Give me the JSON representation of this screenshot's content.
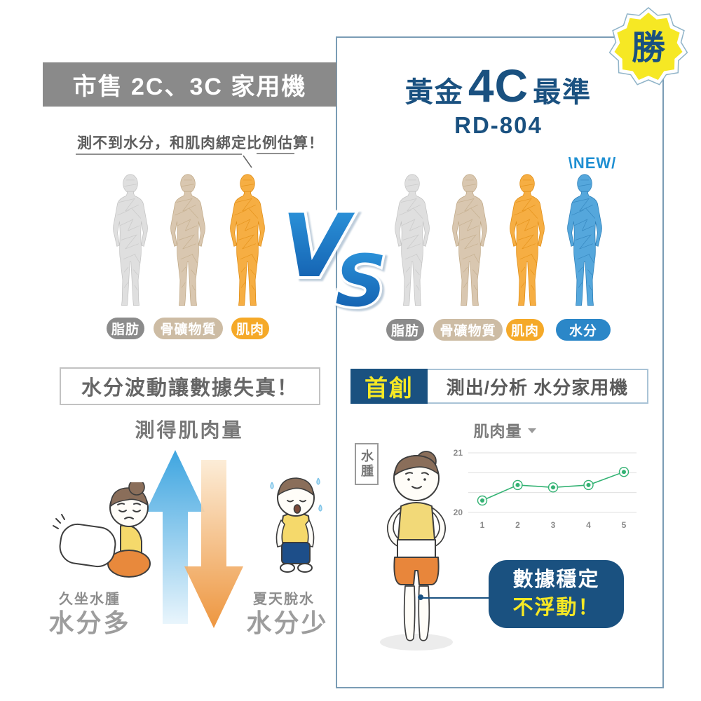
{
  "colors": {
    "navy": "#1a5180",
    "yellow": "#f6e824",
    "gray_bar": "#8a8a8a",
    "steel_border": "#7a9cb5",
    "new_blue": "#1e8fd2",
    "vs_blue_light": "#2f9ae0",
    "vs_blue_dark": "#0f57a8",
    "arrow_up_blue": "#45aae2",
    "arrow_down_orange": "#ee8f35",
    "chart_green": "#33b273"
  },
  "left_panel": {
    "header": "市售 2C、3C 家用機",
    "warning": "測不到水分，和肌肉綁定比例估算！",
    "legend": [
      {
        "label": "脂肪",
        "color": "#8b8b8b"
      },
      {
        "label": "骨礦物質",
        "color": "#cdbca4"
      },
      {
        "label": "肌肉",
        "color": "#f5a928"
      }
    ],
    "issue_box": "水分波動讓數據失真！",
    "muscle_title": "測得肌肉量",
    "scenario_left": {
      "caption": "久坐水腫",
      "label": "水分多"
    },
    "scenario_right": {
      "caption": "夏天脫水",
      "label": "水分少"
    }
  },
  "vs_label_v": "V",
  "vs_label_s": "S",
  "right_panel": {
    "title_prefix": "黃金",
    "title_big": "4C",
    "title_suffix": "最準",
    "model": "RD-804",
    "win_badge": "勝",
    "new_label": "\\NEW/",
    "legend": [
      {
        "label": "脂肪",
        "color": "#8b8b8b"
      },
      {
        "label": "骨礦物質",
        "color": "#cdbca4"
      },
      {
        "label": "肌肉",
        "color": "#f5a928"
      },
      {
        "label": "水分",
        "color": "#2b87c8"
      }
    ],
    "first_badge": "首創",
    "first_text": "測出/分析 水分家用機",
    "edema_label": "水腫",
    "bubble_line1": "數據穩定",
    "bubble_line2": "不浮動！"
  },
  "chart_data": {
    "type": "line",
    "title": "肌肉量",
    "x": [
      1,
      2,
      3,
      4,
      5
    ],
    "values": [
      20.2,
      20.46,
      20.42,
      20.46,
      20.68
    ],
    "ylim": [
      20,
      21
    ],
    "yticks": [
      21,
      20
    ],
    "xlabel": "",
    "ylabel": "",
    "grid": true,
    "gridline_count": 4,
    "legend_position": "none",
    "line_color": "#33b273"
  }
}
